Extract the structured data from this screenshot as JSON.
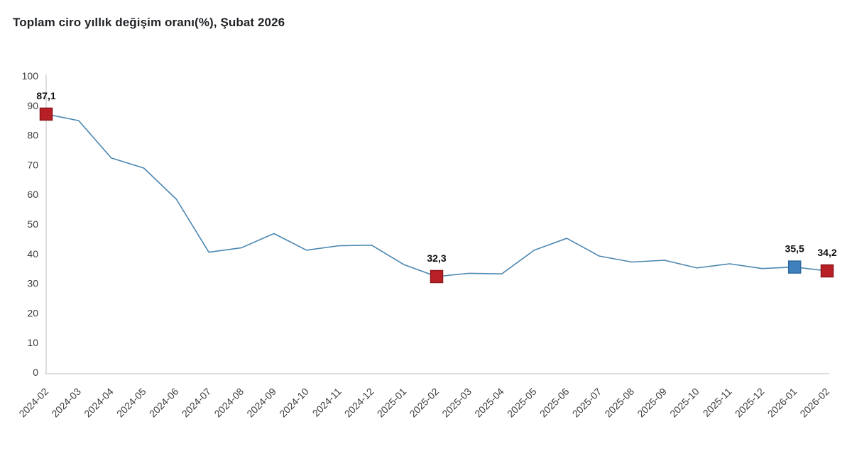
{
  "chart_data": {
    "type": "line",
    "title": "Toplam ciro yıllık değişim oranı(%), Şubat 2026",
    "categories": [
      "2024-02",
      "2024-03",
      "2024-04",
      "2024-05",
      "2024-06",
      "2024-07",
      "2024-08",
      "2024-09",
      "2024-10",
      "2024-11",
      "2024-12",
      "2025-01",
      "2025-02",
      "2025-03",
      "2025-04",
      "2025-05",
      "2025-06",
      "2025-07",
      "2025-08",
      "2025-09",
      "2025-10",
      "2025-11",
      "2025-12",
      "2026-01",
      "2026-02"
    ],
    "values": [
      87.1,
      84.9,
      72.3,
      68.9,
      58.4,
      40.5,
      42.0,
      46.8,
      41.2,
      42.7,
      42.9,
      36.3,
      32.3,
      33.4,
      33.2,
      41.2,
      45.2,
      39.2,
      37.2,
      37.8,
      35.2,
      36.6,
      35.0,
      35.5,
      34.2
    ],
    "xlabel": "",
    "ylabel": "",
    "ylim": [
      0,
      100
    ],
    "yticks": [
      0,
      10,
      20,
      30,
      40,
      50,
      60,
      70,
      80,
      90,
      100
    ],
    "grid": false,
    "legend_position": "none",
    "x_tick_rotation_deg": -45,
    "annotated_points": [
      {
        "index": 0,
        "category": "2024-02",
        "value": 87.1,
        "label": "87,1",
        "marker_color": "#b92025",
        "marker_border": "#8c161b"
      },
      {
        "index": 12,
        "category": "2025-02",
        "value": 32.3,
        "label": "32,3",
        "marker_color": "#b92025",
        "marker_border": "#8c161b"
      },
      {
        "index": 23,
        "category": "2026-01",
        "value": 35.5,
        "label": "35,5",
        "marker_color": "#3f80bd",
        "marker_border": "#2c679f"
      },
      {
        "index": 24,
        "category": "2026-02",
        "value": 34.2,
        "label": "34,2",
        "marker_color": "#b92025",
        "marker_border": "#8c161b"
      }
    ],
    "colors": {
      "line": "#4a86b0",
      "axis": "#d4d4d4",
      "tick_label": "#3c3c3c",
      "data_label": "#0d0d0d",
      "title": "#1f2226",
      "background": "#ffffff"
    }
  }
}
